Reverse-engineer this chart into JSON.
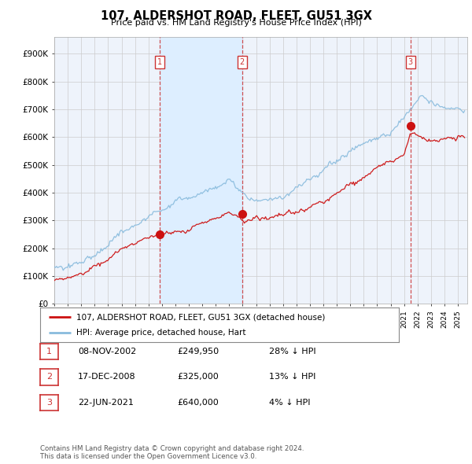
{
  "title": "107, ALDERSHOT ROAD, FLEET, GU51 3GX",
  "subtitle": "Price paid vs. HM Land Registry's House Price Index (HPI)",
  "ylabel_ticks": [
    "£0",
    "£100K",
    "£200K",
    "£300K",
    "£400K",
    "£500K",
    "£600K",
    "£700K",
    "£800K",
    "£900K"
  ],
  "ytick_values": [
    0,
    100000,
    200000,
    300000,
    400000,
    500000,
    600000,
    700000,
    800000,
    900000
  ],
  "ylim": [
    0,
    960000
  ],
  "xlim_start": 1995.0,
  "xlim_end": 2025.7,
  "sale_dates": [
    2002.86,
    2008.96,
    2021.47
  ],
  "sale_prices": [
    249950,
    325000,
    640000
  ],
  "sale_labels": [
    "1",
    "2",
    "3"
  ],
  "vline_color": "#cc3333",
  "red_line_color": "#cc1111",
  "blue_line_color": "#88bbdd",
  "shade_color": "#ddeeff",
  "background_color": "#eef3fb",
  "plot_bg_color": "#ffffff",
  "grid_color": "#cccccc",
  "legend_entries": [
    "107, ALDERSHOT ROAD, FLEET, GU51 3GX (detached house)",
    "HPI: Average price, detached house, Hart"
  ],
  "table_rows": [
    {
      "label": "1",
      "date": "08-NOV-2002",
      "price": "£249,950",
      "hpi": "28% ↓ HPI"
    },
    {
      "label": "2",
      "date": "17-DEC-2008",
      "price": "£325,000",
      "hpi": "13% ↓ HPI"
    },
    {
      "label": "3",
      "date": "22-JUN-2021",
      "price": "£640,000",
      "hpi": "4% ↓ HPI"
    }
  ],
  "footnote1": "Contains HM Land Registry data © Crown copyright and database right 2024.",
  "footnote2": "This data is licensed under the Open Government Licence v3.0."
}
